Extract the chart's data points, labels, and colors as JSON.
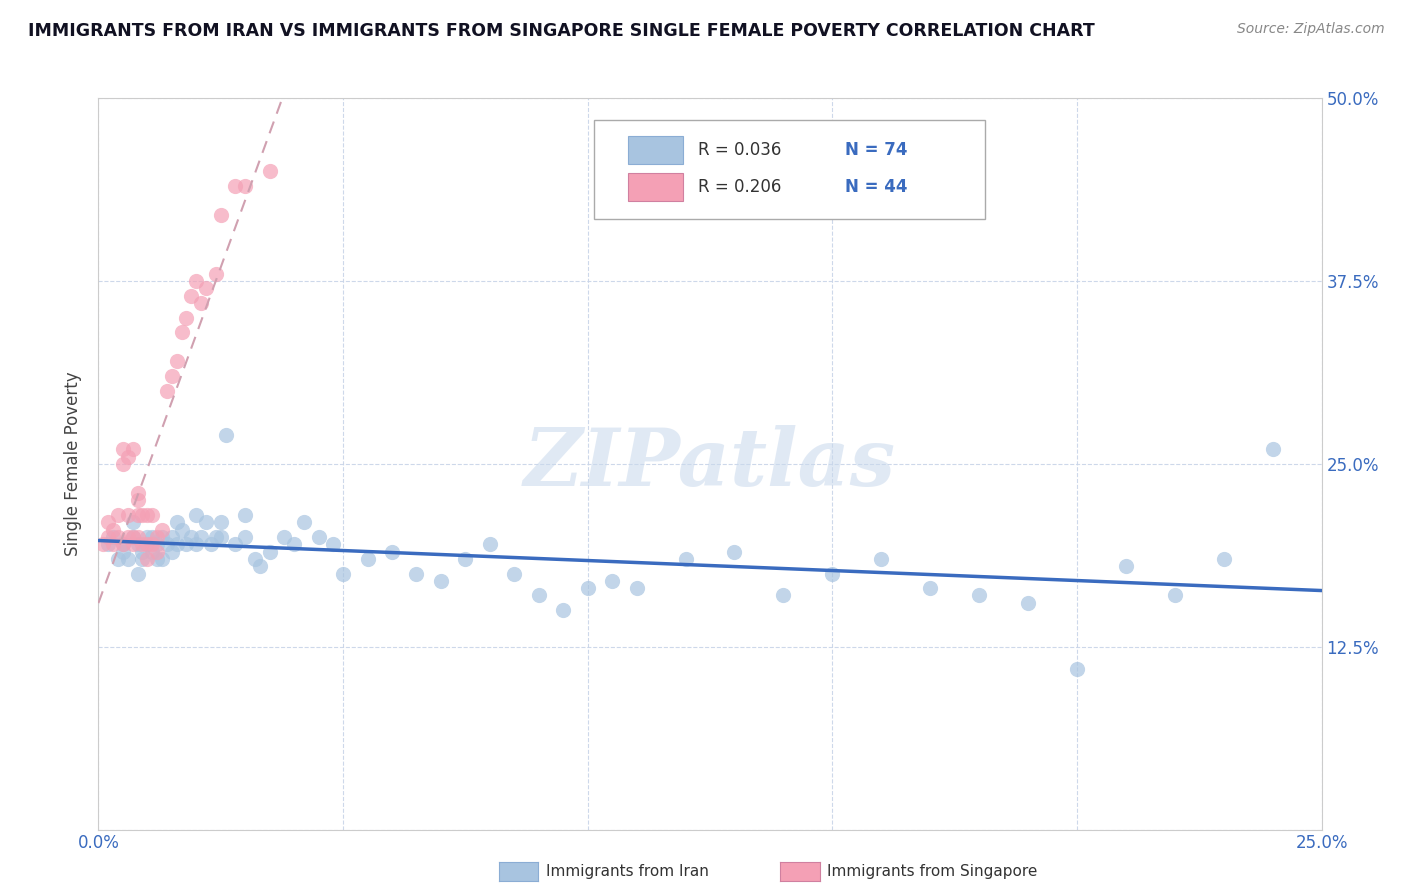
{
  "title": "IMMIGRANTS FROM IRAN VS IMMIGRANTS FROM SINGAPORE SINGLE FEMALE POVERTY CORRELATION CHART",
  "source": "Source: ZipAtlas.com",
  "ylabel": "Single Female Poverty",
  "xlim": [
    0.0,
    0.25
  ],
  "ylim": [
    0.0,
    0.5
  ],
  "xticks": [
    0.0,
    0.05,
    0.1,
    0.15,
    0.2,
    0.25
  ],
  "xtick_labels": [
    "0.0%",
    "",
    "",
    "",
    "",
    "25.0%"
  ],
  "yticks": [
    0.0,
    0.125,
    0.25,
    0.375,
    0.5
  ],
  "ytick_labels": [
    "",
    "12.5%",
    "25.0%",
    "37.5%",
    "50.0%"
  ],
  "iran_color": "#a8c4e0",
  "singapore_color": "#f4a0b5",
  "iran_line_color": "#3a6bbf",
  "singapore_line_color": "#d04060",
  "iran_R": 0.036,
  "iran_N": 74,
  "singapore_R": 0.206,
  "singapore_N": 44,
  "watermark": "ZIPatlas",
  "iran_scatter_x": [
    0.002,
    0.003,
    0.004,
    0.005,
    0.005,
    0.006,
    0.007,
    0.007,
    0.008,
    0.008,
    0.009,
    0.009,
    0.01,
    0.01,
    0.011,
    0.011,
    0.012,
    0.012,
    0.013,
    0.013,
    0.014,
    0.015,
    0.015,
    0.016,
    0.016,
    0.017,
    0.018,
    0.019,
    0.02,
    0.02,
    0.021,
    0.022,
    0.023,
    0.024,
    0.025,
    0.025,
    0.026,
    0.028,
    0.03,
    0.03,
    0.032,
    0.033,
    0.035,
    0.038,
    0.04,
    0.042,
    0.045,
    0.048,
    0.05,
    0.055,
    0.06,
    0.065,
    0.07,
    0.075,
    0.08,
    0.085,
    0.09,
    0.095,
    0.1,
    0.105,
    0.11,
    0.12,
    0.13,
    0.14,
    0.15,
    0.16,
    0.17,
    0.18,
    0.19,
    0.2,
    0.21,
    0.22,
    0.23,
    0.24
  ],
  "iran_scatter_y": [
    0.195,
    0.2,
    0.185,
    0.19,
    0.195,
    0.185,
    0.2,
    0.21,
    0.175,
    0.195,
    0.19,
    0.185,
    0.2,
    0.195,
    0.19,
    0.2,
    0.185,
    0.195,
    0.185,
    0.2,
    0.195,
    0.19,
    0.2,
    0.21,
    0.195,
    0.205,
    0.195,
    0.2,
    0.195,
    0.215,
    0.2,
    0.21,
    0.195,
    0.2,
    0.2,
    0.21,
    0.27,
    0.195,
    0.2,
    0.215,
    0.185,
    0.18,
    0.19,
    0.2,
    0.195,
    0.21,
    0.2,
    0.195,
    0.175,
    0.185,
    0.19,
    0.175,
    0.17,
    0.185,
    0.195,
    0.175,
    0.16,
    0.15,
    0.165,
    0.17,
    0.165,
    0.185,
    0.19,
    0.16,
    0.175,
    0.185,
    0.165,
    0.16,
    0.155,
    0.11,
    0.18,
    0.16,
    0.185,
    0.26
  ],
  "singapore_scatter_x": [
    0.001,
    0.002,
    0.002,
    0.003,
    0.003,
    0.004,
    0.004,
    0.005,
    0.005,
    0.005,
    0.006,
    0.006,
    0.006,
    0.007,
    0.007,
    0.007,
    0.008,
    0.008,
    0.008,
    0.008,
    0.009,
    0.009,
    0.01,
    0.01,
    0.01,
    0.011,
    0.011,
    0.012,
    0.012,
    0.013,
    0.014,
    0.015,
    0.016,
    0.017,
    0.018,
    0.019,
    0.02,
    0.021,
    0.022,
    0.024,
    0.025,
    0.028,
    0.03,
    0.035
  ],
  "singapore_scatter_y": [
    0.195,
    0.2,
    0.21,
    0.195,
    0.205,
    0.2,
    0.215,
    0.25,
    0.26,
    0.195,
    0.2,
    0.215,
    0.255,
    0.195,
    0.2,
    0.26,
    0.2,
    0.215,
    0.225,
    0.23,
    0.195,
    0.215,
    0.195,
    0.185,
    0.215,
    0.195,
    0.215,
    0.19,
    0.2,
    0.205,
    0.3,
    0.31,
    0.32,
    0.34,
    0.35,
    0.365,
    0.375,
    0.36,
    0.37,
    0.38,
    0.42,
    0.44,
    0.44,
    0.45
  ],
  "legend_R_color": "#333333",
  "legend_N_color": "#3a6bbf"
}
